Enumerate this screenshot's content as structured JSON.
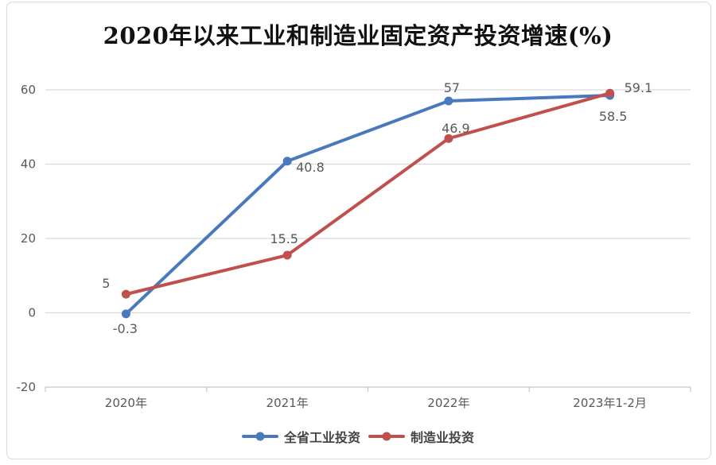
{
  "chart_data": {
    "type": "line",
    "title": "2020年以来工业和制造业固定资产投资增速(%)",
    "categories": [
      "2020年",
      "2021年",
      "2022年",
      "2023年1-2月"
    ],
    "series": [
      {
        "name": "全省工业投资",
        "color": "#4879BD",
        "values": [
          -0.3,
          40.8,
          57,
          58.5
        ],
        "point_labels": [
          "-0.3",
          "40.8",
          "57",
          "58.5"
        ]
      },
      {
        "name": "制造业投资",
        "color": "#C0504D",
        "values": [
          5,
          15.5,
          46.9,
          59.1
        ],
        "point_labels": [
          "5",
          "15.5",
          "46.9",
          "59.1"
        ]
      }
    ],
    "yticks": [
      -20,
      0,
      20,
      40,
      60
    ],
    "ytick_labels": [
      "-20",
      "0",
      "20",
      "40",
      "60"
    ],
    "ylim": [
      -20,
      60
    ],
    "xlabel": "",
    "ylabel": "",
    "grid": true,
    "legend_position": "bottom",
    "colors": {
      "gridline": "#d9d9d9",
      "axis_line": "#c6c6c6",
      "tick_label": "#595959",
      "data_label": "#595959",
      "frame_border": "#d9d9d9"
    }
  }
}
